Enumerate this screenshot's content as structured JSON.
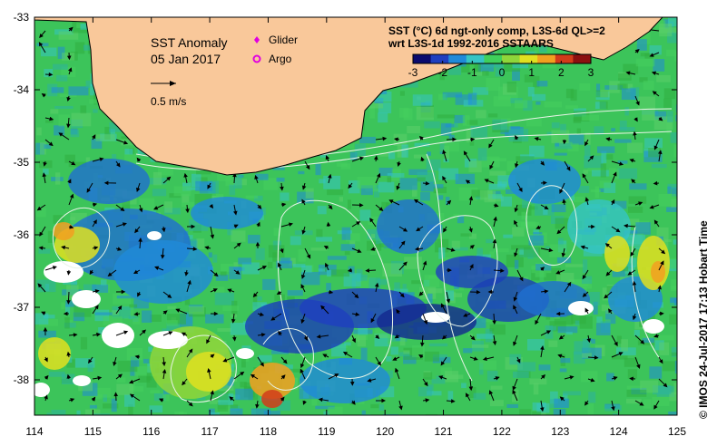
{
  "map": {
    "title": "SST Anomaly",
    "date": "05 Jan 2017",
    "vector_scale_label": "0.5 m/s",
    "legend_markers": [
      {
        "label": "Glider",
        "color": "#e000e0",
        "symbol": "diamond-icon"
      },
      {
        "label": "Argo",
        "color": "#e000e0",
        "symbol": "circle-icon"
      }
    ],
    "colorbar": {
      "line1": "SST (°C) 6d ngt-only comp, L3S-6d QL>=2",
      "line2": "wrt L3S-1d 1992-2016 SSTAARS",
      "min": -3,
      "max": 3,
      "ticks": [
        "-3",
        "-2",
        "-1",
        "0",
        "1",
        "2",
        "3"
      ],
      "colors": [
        "#0a0a6e",
        "#1f3fbf",
        "#1f8ad9",
        "#35c4c4",
        "#3fcf5a",
        "#8fd63a",
        "#e0e020",
        "#f2a020",
        "#d23c1a",
        "#8c1010"
      ]
    },
    "x_axis": {
      "ticks": [
        "114",
        "115",
        "116",
        "117",
        "118",
        "119",
        "120",
        "121",
        "122",
        "123",
        "124",
        "125"
      ]
    },
    "y_axis": {
      "ticks": [
        "-33",
        "-34",
        "-35",
        "-36",
        "-37",
        "-38"
      ]
    },
    "land_color": "#f9c89a",
    "credit": "© IMOS 24-Jul-2017 17:13 Hobart Time"
  }
}
